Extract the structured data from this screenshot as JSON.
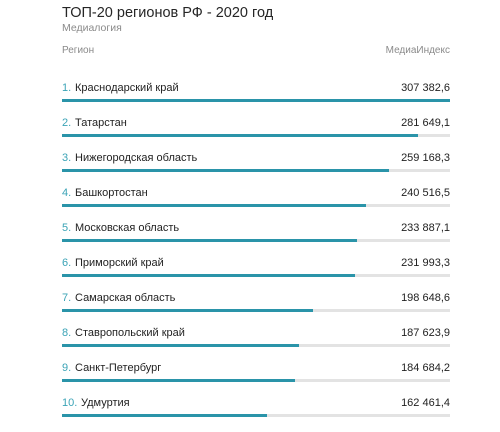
{
  "colors": {
    "accent": "#2a94a9",
    "rank": "#3aa3b6",
    "track": "#e3e3e3"
  },
  "chart_data": {
    "type": "bar",
    "orientation": "horizontal",
    "title": "ТОП-20 регионов РФ - 2020 год",
    "subtitle": "Медиалогия",
    "category_header": "Регион",
    "value_header": "МедиаИндекс",
    "xlim": [
      0,
      307382.6
    ],
    "items": [
      {
        "rank": "1.",
        "name": "Краснодарский край",
        "value": 307382.6,
        "value_label": "307 382,6"
      },
      {
        "rank": "2.",
        "name": "Татарстан",
        "value": 281649.1,
        "value_label": "281 649,1"
      },
      {
        "rank": "3.",
        "name": "Нижегородская область",
        "value": 259168.3,
        "value_label": "259 168,3"
      },
      {
        "rank": "4.",
        "name": "Башкортостан",
        "value": 240516.5,
        "value_label": "240 516,5"
      },
      {
        "rank": "5.",
        "name": "Московская область",
        "value": 233887.1,
        "value_label": "233 887,1"
      },
      {
        "rank": "6.",
        "name": "Приморский край",
        "value": 231993.3,
        "value_label": "231 993,3"
      },
      {
        "rank": "7.",
        "name": "Самарская область",
        "value": 198648.6,
        "value_label": "198 648,6"
      },
      {
        "rank": "8.",
        "name": "Ставропольский край",
        "value": 187623.9,
        "value_label": "187 623,9"
      },
      {
        "rank": "9.",
        "name": "Санкт-Петербург",
        "value": 184684.2,
        "value_label": "184 684,2"
      },
      {
        "rank": "10.",
        "name": "Удмуртия",
        "value": 162461.4,
        "value_label": "162 461,4"
      }
    ]
  }
}
